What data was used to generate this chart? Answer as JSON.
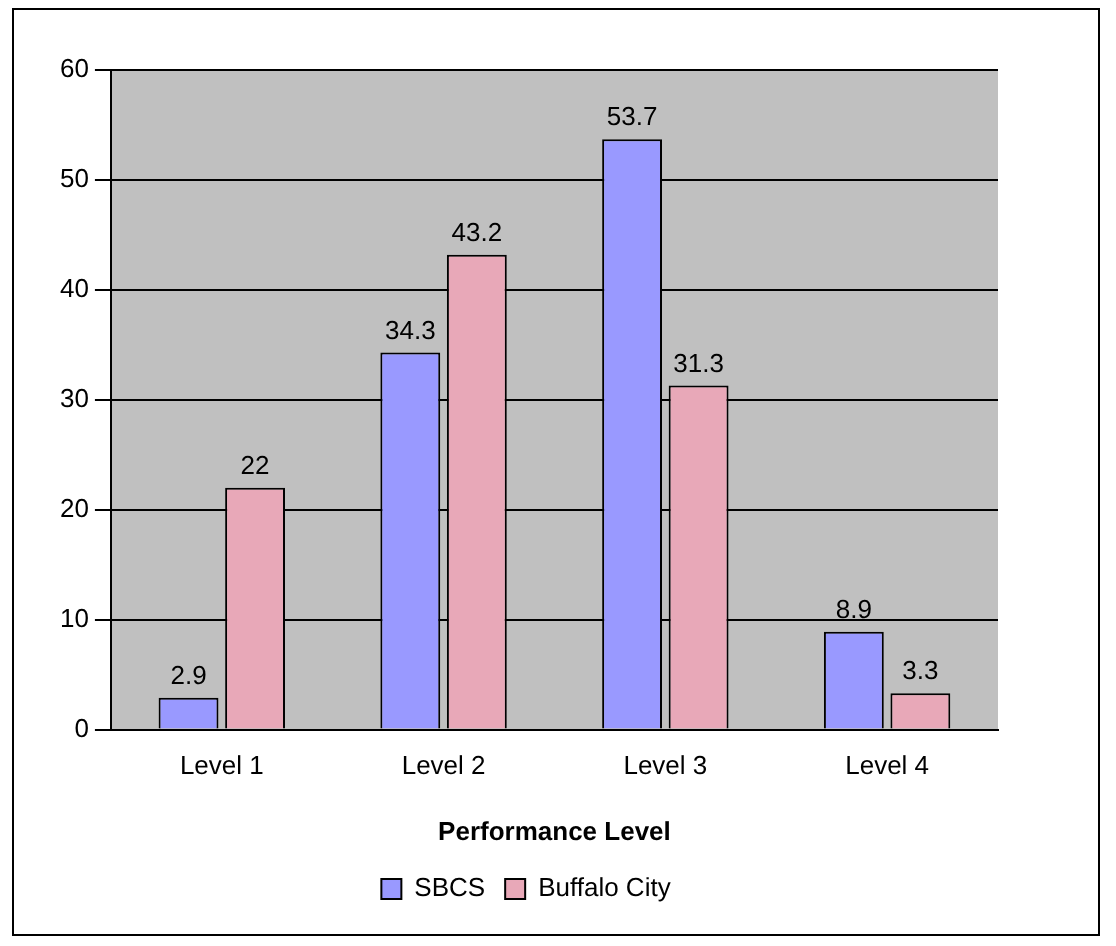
{
  "chart_data": {
    "type": "bar",
    "xlabel": "Performance Level",
    "categories": [
      "Level 1",
      "Level 2",
      "Level 3",
      "Level 4"
    ],
    "series": [
      {
        "name": "SBCS",
        "color": "#9999ff",
        "values": [
          2.9,
          34.3,
          53.7,
          8.9
        ]
      },
      {
        "name": "Buffalo City",
        "color": "#e8a8b8",
        "values": [
          22,
          43.2,
          31.3,
          3.3
        ]
      }
    ],
    "ylim": [
      0,
      60
    ],
    "yticks": [
      0,
      10,
      20,
      30,
      40,
      50,
      60
    ],
    "grid": "y",
    "legend": "bottom",
    "data_labels": true
  }
}
